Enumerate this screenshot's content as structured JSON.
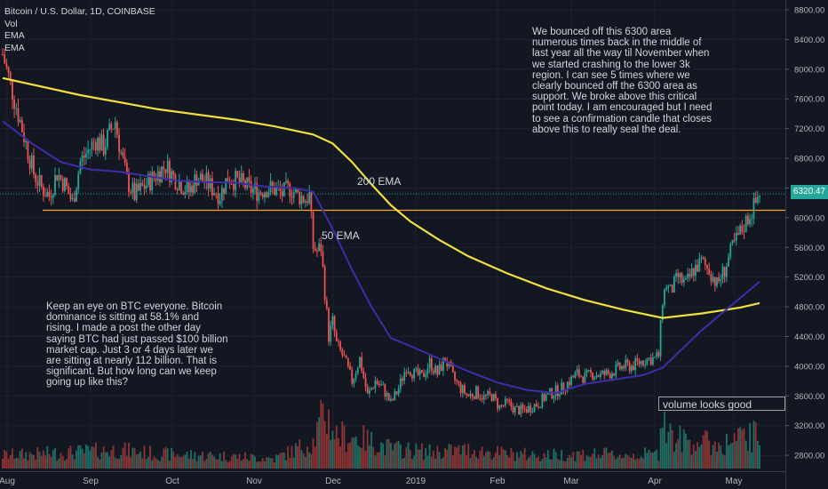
{
  "legend": {
    "title": "Bitcoin / U.S. Dollar, 1D, COINBASE",
    "indicators": [
      "Vol",
      "EMA",
      "EMA"
    ]
  },
  "notes": {
    "top_right": "We bounced off this 6300 area\nnumerous times back in the middle of\nlast year all the way til November when\nwe started crashing to the lower 3k\nregion. I can see 5 times where we\nclearly bounced off the 6300 area as\nsupport. We broke above this critical\npoint today. I am encouraged but I need\nto see a confirmation candle that closes\nabove this to really seal the deal.",
    "left": "Keep an eye on BTC everyone. Bitcoin\ndominance is sitting at 58.1% and\nrising. I made a post the other day\nsaying BTC had just passed $100 billion\nmarket cap. Just 3 or 4 days later we\nare sitting at nearly 112 billion. That is\nsignificant. But how long can we keep\ngoing up like this?"
  },
  "labels": {
    "ema200": "200 EMA",
    "ema50": "50 EMA",
    "volume_note": "volume looks good",
    "current_price": "6320.47"
  },
  "colors": {
    "background": "#131722",
    "up": "#26a69a",
    "down": "#ef5350",
    "ema200": "#f0e040",
    "ema50": "#3d2ea8",
    "support": "#f5a623",
    "price_line": "#26a69a"
  },
  "chart_data": {
    "type": "candlestick",
    "title": "Bitcoin / U.S. Dollar, 1D, COINBASE",
    "x_ticks": [
      "Aug",
      "Sep",
      "Oct",
      "Nov",
      "Dec",
      "2019",
      "Feb",
      "Mar",
      "Apr",
      "May"
    ],
    "y_ticks": [
      2800,
      3200,
      3600,
      4000,
      4400,
      4800,
      5200,
      5600,
      6000,
      6400,
      6800,
      7200,
      7600,
      8000,
      8400,
      8800
    ],
    "ylim": [
      2650,
      8950
    ],
    "support_level": 6100,
    "current_price": 6320.47,
    "close_path": [
      [
        0,
        8200
      ],
      [
        4,
        7800
      ],
      [
        8,
        7400
      ],
      [
        12,
        7000
      ],
      [
        16,
        6600
      ],
      [
        20,
        6400
      ],
      [
        24,
        6300
      ],
      [
        28,
        6600
      ],
      [
        32,
        6450
      ],
      [
        36,
        6200
      ],
      [
        40,
        6750
      ],
      [
        44,
        6900
      ],
      [
        48,
        7050
      ],
      [
        52,
        6950
      ],
      [
        56,
        7200
      ],
      [
        58,
        7300
      ],
      [
        60,
        7000
      ],
      [
        64,
        6500
      ],
      [
        68,
        6300
      ],
      [
        72,
        6400
      ],
      [
        76,
        6500
      ],
      [
        80,
        6600
      ],
      [
        84,
        6700
      ],
      [
        88,
        6550
      ],
      [
        92,
        6450
      ],
      [
        96,
        6350
      ],
      [
        100,
        6550
      ],
      [
        104,
        6500
      ],
      [
        108,
        6400
      ],
      [
        112,
        6300
      ],
      [
        116,
        6550
      ],
      [
        120,
        6500
      ],
      [
        124,
        6450
      ],
      [
        128,
        6380
      ],
      [
        132,
        6350
      ],
      [
        136,
        6400
      ],
      [
        140,
        6380
      ],
      [
        144,
        6320
      ],
      [
        148,
        6400
      ],
      [
        152,
        6300
      ],
      [
        156,
        6250
      ],
      [
        158,
        6300
      ],
      [
        160,
        5600
      ],
      [
        162,
        5550
      ],
      [
        164,
        5600
      ],
      [
        166,
        5000
      ],
      [
        168,
        4400
      ],
      [
        170,
        4600
      ],
      [
        172,
        4300
      ],
      [
        176,
        4100
      ],
      [
        180,
        3800
      ],
      [
        184,
        4100
      ],
      [
        188,
        3600
      ],
      [
        192,
        3800
      ],
      [
        196,
        3700
      ],
      [
        200,
        3500
      ],
      [
        204,
        3700
      ],
      [
        208,
        4000
      ],
      [
        212,
        3900
      ],
      [
        216,
        3850
      ],
      [
        220,
        4050
      ],
      [
        224,
        3900
      ],
      [
        228,
        4100
      ],
      [
        232,
        3850
      ],
      [
        236,
        3700
      ],
      [
        240,
        3600
      ],
      [
        244,
        3650
      ],
      [
        248,
        3580
      ],
      [
        252,
        3600
      ],
      [
        256,
        3450
      ],
      [
        260,
        3500
      ],
      [
        264,
        3420
      ],
      [
        268,
        3400
      ],
      [
        272,
        3450
      ],
      [
        276,
        3500
      ],
      [
        280,
        3600
      ],
      [
        284,
        3650
      ],
      [
        288,
        3700
      ],
      [
        292,
        3800
      ],
      [
        296,
        3900
      ],
      [
        300,
        3850
      ],
      [
        304,
        3900
      ],
      [
        308,
        3880
      ],
      [
        312,
        3900
      ],
      [
        316,
        3950
      ],
      [
        320,
        4000
      ],
      [
        324,
        4000
      ],
      [
        328,
        4050
      ],
      [
        332,
        4100
      ],
      [
        336,
        4100
      ],
      [
        338,
        4150
      ],
      [
        340,
        4900
      ],
      [
        342,
        5100
      ],
      [
        344,
        5000
      ],
      [
        348,
        5200
      ],
      [
        352,
        5100
      ],
      [
        356,
        5300
      ],
      [
        360,
        5400
      ],
      [
        364,
        5300
      ],
      [
        368,
        5100
      ],
      [
        372,
        5300
      ],
      [
        376,
        5600
      ],
      [
        380,
        5800
      ],
      [
        384,
        6000
      ],
      [
        388,
        6200
      ],
      [
        390,
        6350
      ]
    ],
    "ema200_path": [
      [
        0,
        7880
      ],
      [
        40,
        7650
      ],
      [
        80,
        7460
      ],
      [
        120,
        7320
      ],
      [
        140,
        7230
      ],
      [
        160,
        7120
      ],
      [
        170,
        7000
      ],
      [
        180,
        6750
      ],
      [
        190,
        6450
      ],
      [
        200,
        6170
      ],
      [
        210,
        5950
      ],
      [
        225,
        5700
      ],
      [
        240,
        5480
      ],
      [
        260,
        5250
      ],
      [
        280,
        5050
      ],
      [
        300,
        4890
      ],
      [
        320,
        4760
      ],
      [
        340,
        4650
      ],
      [
        360,
        4710
      ],
      [
        380,
        4790
      ],
      [
        390,
        4850
      ]
    ],
    "ema50_path": [
      [
        0,
        7300
      ],
      [
        15,
        7000
      ],
      [
        30,
        6750
      ],
      [
        45,
        6650
      ],
      [
        60,
        6620
      ],
      [
        75,
        6560
      ],
      [
        90,
        6500
      ],
      [
        105,
        6480
      ],
      [
        120,
        6470
      ],
      [
        135,
        6420
      ],
      [
        150,
        6400
      ],
      [
        160,
        6350
      ],
      [
        170,
        5850
      ],
      [
        180,
        5300
      ],
      [
        190,
        4800
      ],
      [
        200,
        4380
      ],
      [
        212,
        4250
      ],
      [
        225,
        4100
      ],
      [
        240,
        3930
      ],
      [
        255,
        3780
      ],
      [
        270,
        3680
      ],
      [
        285,
        3640
      ],
      [
        300,
        3760
      ],
      [
        315,
        3820
      ],
      [
        330,
        3880
      ],
      [
        340,
        3980
      ],
      [
        350,
        4230
      ],
      [
        360,
        4480
      ],
      [
        370,
        4700
      ],
      [
        380,
        4920
      ],
      [
        390,
        5140
      ]
    ],
    "volume_profile": [
      [
        0,
        0.2
      ],
      [
        20,
        0.22
      ],
      [
        40,
        0.25
      ],
      [
        60,
        0.28
      ],
      [
        80,
        0.22
      ],
      [
        100,
        0.2
      ],
      [
        120,
        0.18
      ],
      [
        140,
        0.15
      ],
      [
        160,
        0.4
      ],
      [
        166,
        0.85
      ],
      [
        172,
        0.5
      ],
      [
        185,
        0.45
      ],
      [
        200,
        0.3
      ],
      [
        220,
        0.25
      ],
      [
        240,
        0.28
      ],
      [
        260,
        0.22
      ],
      [
        280,
        0.2
      ],
      [
        300,
        0.22
      ],
      [
        320,
        0.2
      ],
      [
        338,
        0.22
      ],
      [
        340,
        0.95
      ],
      [
        345,
        0.45
      ],
      [
        360,
        0.4
      ],
      [
        370,
        0.35
      ],
      [
        380,
        0.45
      ],
      [
        390,
        0.5
      ]
    ]
  }
}
